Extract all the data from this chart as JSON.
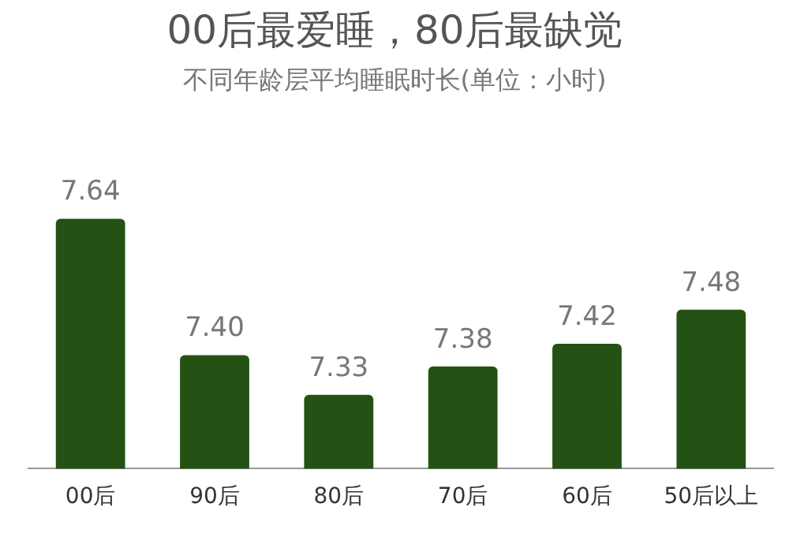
{
  "chart_data": {
    "type": "bar",
    "title": "00后最爱睡，80后最缺觉",
    "subtitle": "不同年龄层平均睡眠时长(单位：小时)",
    "categories": [
      "00后",
      "90后",
      "80后",
      "70后",
      "60后",
      "50后以上"
    ],
    "values": [
      7.64,
      7.4,
      7.33,
      7.38,
      7.42,
      7.48
    ],
    "value_labels": [
      "7.64",
      "7.40",
      "7.33",
      "7.38",
      "7.42",
      "7.48"
    ],
    "color": "#245214",
    "tick_labels": "x",
    "grid": false,
    "legend": false
  }
}
